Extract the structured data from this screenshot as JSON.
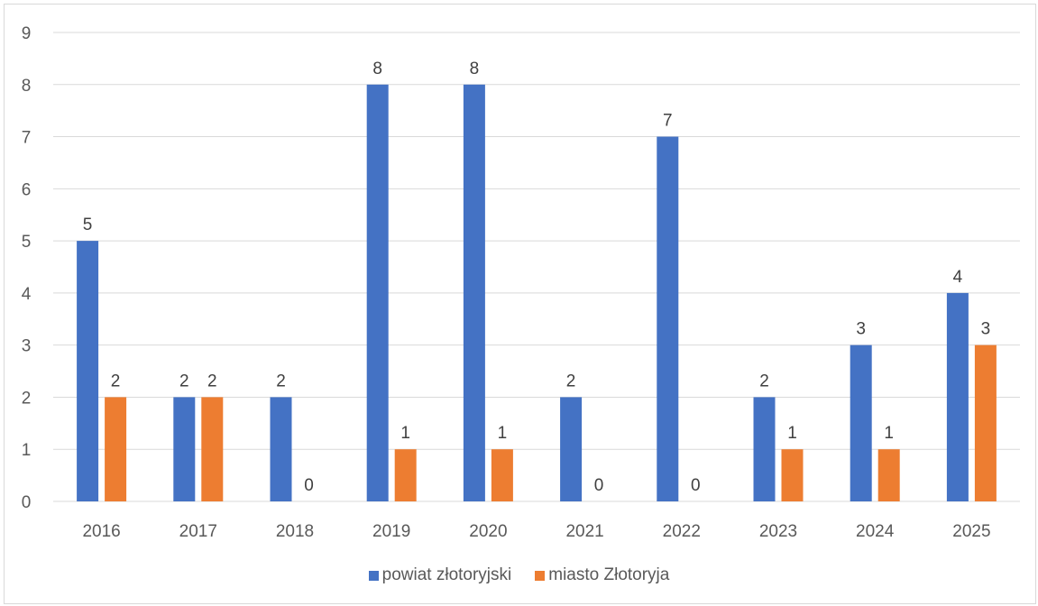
{
  "chart_data": {
    "type": "bar",
    "categories": [
      "2016",
      "2017",
      "2018",
      "2019",
      "2020",
      "2021",
      "2022",
      "2023",
      "2024",
      "2025"
    ],
    "series": [
      {
        "name": "powiat złotoryjski",
        "values": [
          5,
          2,
          2,
          8,
          8,
          2,
          7,
          2,
          3,
          4
        ],
        "color": "#4472C4"
      },
      {
        "name": "miasto Złotoryja",
        "values": [
          2,
          2,
          0,
          1,
          1,
          0,
          0,
          1,
          1,
          3
        ],
        "color": "#ED7D31"
      }
    ],
    "y_ticks": [
      "0",
      "1",
      "2",
      "3",
      "4",
      "5",
      "6",
      "7",
      "8",
      "9"
    ],
    "ylim": [
      0,
      9
    ],
    "grid": true,
    "data_labels": true,
    "legend_position": "bottom"
  }
}
